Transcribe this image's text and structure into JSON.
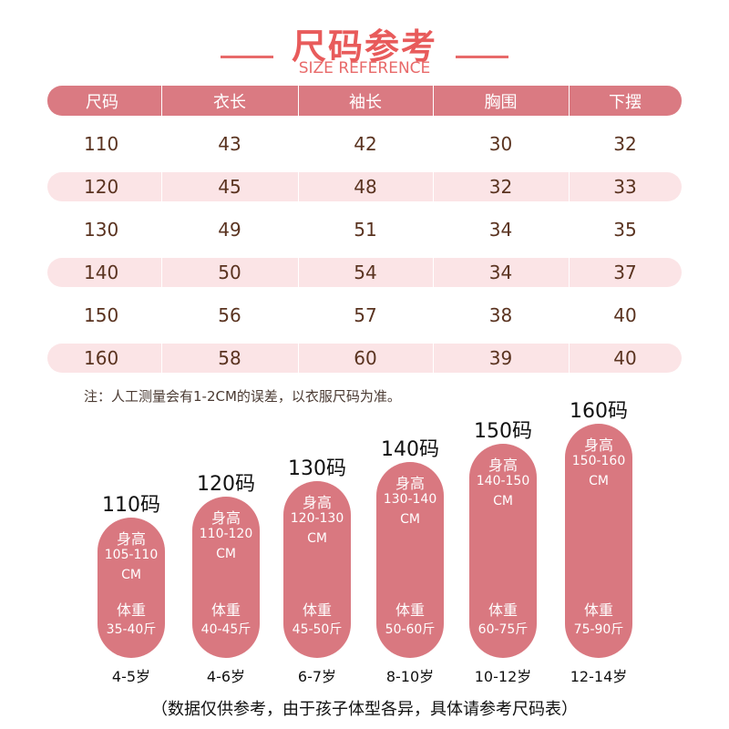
{
  "title": "尺码参考",
  "subtitle": "SIZE REFERENCE",
  "table": {
    "headers": [
      "尺码",
      "衣长",
      "袖长",
      "胸围",
      "下摆"
    ],
    "rows": [
      [
        "110",
        "43",
        "42",
        "30",
        "32"
      ],
      [
        "120",
        "45",
        "48",
        "32",
        "33"
      ],
      [
        "130",
        "49",
        "51",
        "34",
        "35"
      ],
      [
        "140",
        "50",
        "54",
        "34",
        "37"
      ],
      [
        "150",
        "56",
        "57",
        "38",
        "40"
      ],
      [
        "160",
        "58",
        "60",
        "39",
        "40"
      ]
    ]
  },
  "note": "注：人工测量会有1-2CM的误差，以衣服尺码为准。",
  "sizes": [
    {
      "label": "110码",
      "height_label": "身高",
      "height": "105-110",
      "height_unit": "CM",
      "weight_label": "体重",
      "weight": "35-40斤",
      "age": "4-5岁"
    },
    {
      "label": "120码",
      "height_label": "身高",
      "height": "110-120",
      "height_unit": "CM",
      "weight_label": "体重",
      "weight": "40-45斤",
      "age": "4-6岁"
    },
    {
      "label": "130码",
      "height_label": "身高",
      "height": "120-130",
      "height_unit": "CM",
      "weight_label": "体重",
      "weight": "45-50斤",
      "age": "6-7岁"
    },
    {
      "label": "140码",
      "height_label": "身高",
      "height": "130-140",
      "height_unit": "CM",
      "weight_label": "体重",
      "weight": "50-60斤",
      "age": "8-10岁"
    },
    {
      "label": "150码",
      "height_label": "身高",
      "height": "140-150",
      "height_unit": "CM",
      "weight_label": "体重",
      "weight": "60-75斤",
      "age": "10-12岁"
    },
    {
      "label": "160码",
      "height_label": "身高",
      "height": "150-160",
      "height_unit": "CM",
      "weight_label": "体重",
      "weight": "75-90斤",
      "age": "12-14岁"
    }
  ],
  "footer": "（数据仅供参考，由于孩子体型各异，具体请参考尺码表）",
  "colors": {
    "accent": "#e85b5b",
    "header_bg": "#da7a82",
    "stripe_bg": "#fbe4e6",
    "pill_bg": "#d97880"
  }
}
